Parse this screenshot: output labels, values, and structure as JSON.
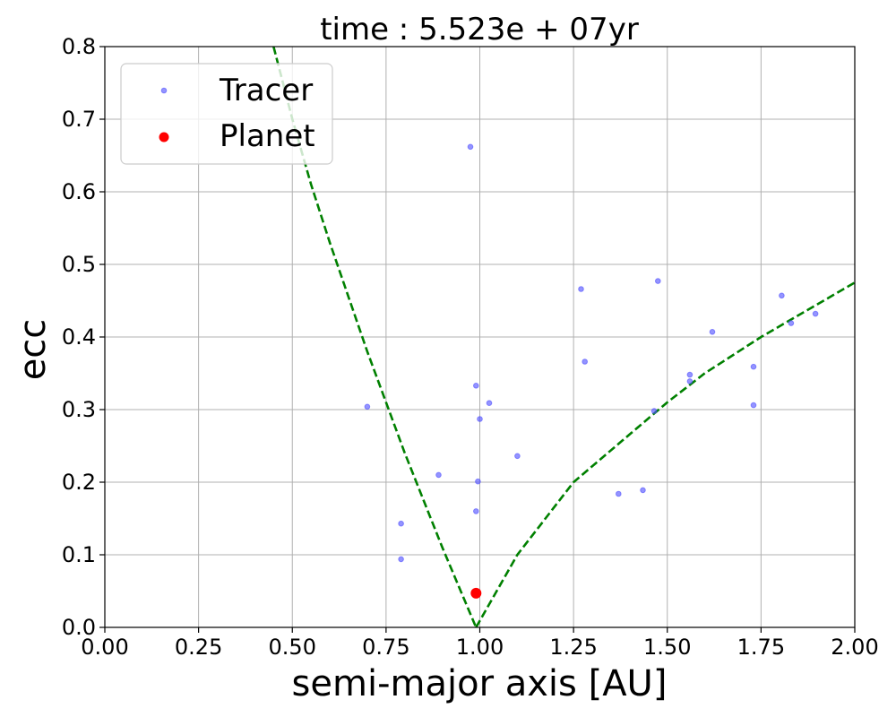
{
  "chart_data": {
    "type": "scatter",
    "title": "time : 5.523e + 07yr",
    "xlabel": "semi-major axis [AU]",
    "ylabel": "ecc",
    "xlim": [
      0.0,
      2.0
    ],
    "ylim": [
      0.0,
      0.8
    ],
    "xticks": [
      "0.00",
      "0.25",
      "0.50",
      "0.75",
      "1.00",
      "1.25",
      "1.50",
      "1.75",
      "2.00"
    ],
    "yticks": [
      "0.0",
      "0.1",
      "0.2",
      "0.3",
      "0.4",
      "0.5",
      "0.6",
      "0.7",
      "0.8"
    ],
    "grid": true,
    "legend_position": "top-left",
    "series": [
      {
        "name": "Tracer",
        "kind": "scatter",
        "color": "#4d4dff",
        "points": [
          [
            0.975,
            0.662
          ],
          [
            0.7,
            0.304
          ],
          [
            0.79,
            0.143
          ],
          [
            0.79,
            0.094
          ],
          [
            0.89,
            0.21
          ],
          [
            0.99,
            0.333
          ],
          [
            0.99,
            0.16
          ],
          [
            0.995,
            0.201
          ],
          [
            1.0,
            0.287
          ],
          [
            1.025,
            0.309
          ],
          [
            1.1,
            0.236
          ],
          [
            1.27,
            0.466
          ],
          [
            1.28,
            0.366
          ],
          [
            1.37,
            0.184
          ],
          [
            1.435,
            0.189
          ],
          [
            1.465,
            0.298
          ],
          [
            1.475,
            0.477
          ],
          [
            1.56,
            0.348
          ],
          [
            1.56,
            0.339
          ],
          [
            1.62,
            0.407
          ],
          [
            1.73,
            0.359
          ],
          [
            1.73,
            0.306
          ],
          [
            1.805,
            0.457
          ],
          [
            1.83,
            0.419
          ],
          [
            1.895,
            0.432
          ]
        ]
      },
      {
        "name": "Planet",
        "kind": "scatter",
        "color": "#ff0000",
        "points": [
          [
            0.99,
            0.047
          ]
        ]
      },
      {
        "name": "",
        "kind": "dashed-line",
        "color": "#008000",
        "points": [
          [
            0.45,
            0.8
          ],
          [
            0.5,
            0.7
          ],
          [
            0.55,
            0.61
          ],
          [
            0.6,
            0.53
          ],
          [
            0.7,
            0.38
          ],
          [
            0.8,
            0.24
          ],
          [
            0.9,
            0.11
          ],
          [
            0.99,
            0.0
          ]
        ]
      },
      {
        "name": "",
        "kind": "dashed-line",
        "color": "#008000",
        "points": [
          [
            0.99,
            0.0
          ],
          [
            1.1,
            0.1
          ],
          [
            1.25,
            0.2
          ],
          [
            1.4,
            0.266
          ],
          [
            1.5,
            0.31
          ],
          [
            1.6,
            0.35
          ],
          [
            1.75,
            0.4
          ],
          [
            1.9,
            0.445
          ],
          [
            2.0,
            0.475
          ]
        ]
      }
    ]
  }
}
